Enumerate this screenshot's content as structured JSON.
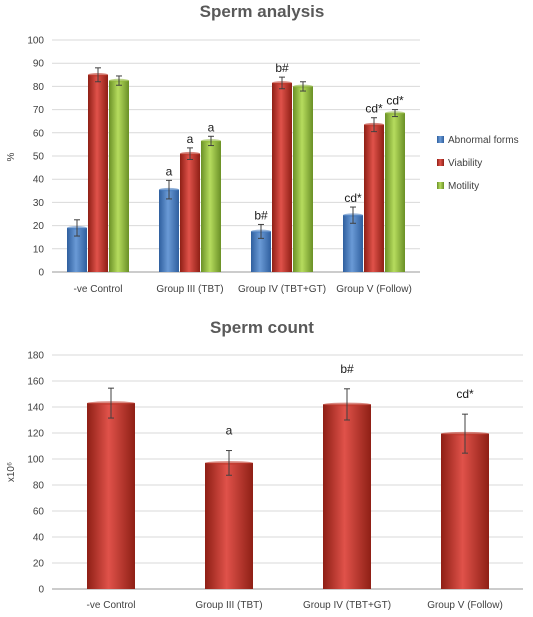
{
  "chart_data": [
    {
      "type": "bar",
      "title": "Sperm analysis",
      "ylabel": "%",
      "ylim": [
        0,
        100
      ],
      "yticks": [
        0,
        10,
        20,
        30,
        40,
        50,
        60,
        70,
        80,
        90,
        100
      ],
      "grid": true,
      "legend_position": "right",
      "categories": [
        "-ve Control",
        "Group III (TBT)",
        "Group IV (TBT+GT)",
        "Group V (Follow)"
      ],
      "series": [
        {
          "name": "Abnormal forms",
          "color": "#4a7fc1",
          "values": [
            19,
            35.5,
            17.5,
            24.5
          ],
          "errors": [
            3.5,
            4,
            3,
            3.5
          ],
          "annotations": [
            "",
            "a",
            "b#",
            "cd*"
          ]
        },
        {
          "name": "Viability",
          "color": "#c0392b",
          "values": [
            85,
            51,
            81.5,
            63.5
          ],
          "errors": [
            3,
            2.5,
            2.5,
            3
          ],
          "annotations": [
            "",
            "a",
            "b#",
            "cd*"
          ]
        },
        {
          "name": "Motility",
          "color": "#8fb83a",
          "values": [
            82.5,
            56.5,
            80,
            68.5
          ],
          "errors": [
            2,
            2,
            2,
            1.5
          ],
          "annotations": [
            "",
            "a",
            "",
            "cd*"
          ]
        }
      ]
    },
    {
      "type": "bar",
      "title": "Sperm count",
      "ylabel": "x10⁶",
      "ylim": [
        0,
        180
      ],
      "yticks": [
        0,
        20,
        40,
        60,
        80,
        100,
        120,
        140,
        160,
        180
      ],
      "grid": true,
      "categories": [
        "-ve Control",
        "Group III (TBT)",
        "Group IV (TBT+GT)",
        "Group V (Follow)"
      ],
      "series": [
        {
          "color": "#c0392b",
          "values": [
            143,
            97,
            142,
            119.5
          ],
          "errors": [
            11.5,
            9.5,
            12,
            15
          ],
          "annotations": [
            "",
            "a",
            "b#",
            "cd*"
          ]
        }
      ]
    }
  ]
}
